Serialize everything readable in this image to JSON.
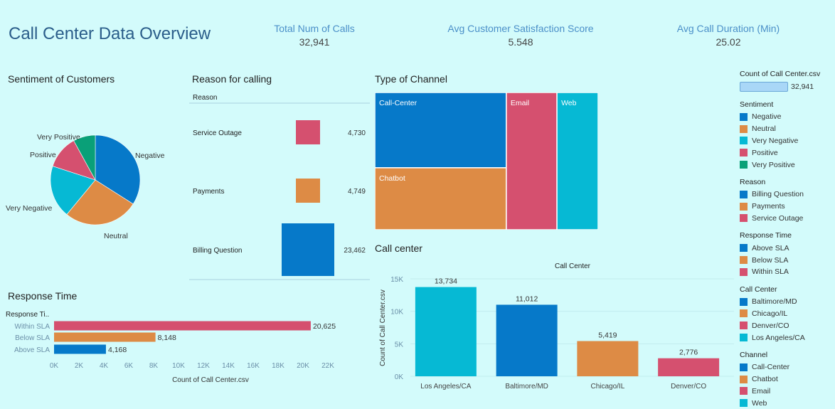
{
  "header": {
    "title": "Call Center Data Overview",
    "kpis": [
      {
        "label": "Total Num of Calls",
        "value": "32,941"
      },
      {
        "label": "Avg Customer Satisfaction Score",
        "value": "5.548"
      },
      {
        "label": "Avg Call Duration (Min)",
        "value": "25.02"
      }
    ]
  },
  "colors": {
    "blue": "#0679c9",
    "orange": "#dd8b45",
    "teal": "#06b9d4",
    "pink": "#d5506f",
    "green": "#0aa078"
  },
  "chart_data": [
    {
      "id": "sentiment",
      "type": "pie",
      "title": "Sentiment of Customers",
      "slices": [
        {
          "label": "Negative",
          "value": 34,
          "color": "#0679c9"
        },
        {
          "label": "Neutral",
          "value": 27,
          "color": "#dd8b45"
        },
        {
          "label": "Very Negative",
          "value": 19,
          "color": "#06b9d4"
        },
        {
          "label": "Positive",
          "value": 12,
          "color": "#d5506f"
        },
        {
          "label": "Very Positive",
          "value": 8,
          "color": "#0aa078"
        }
      ]
    },
    {
      "id": "reason",
      "type": "bar",
      "title": "Reason for calling",
      "column_header": "Reason",
      "categories": [
        "Service Outage",
        "Payments",
        "Billing Question"
      ],
      "values": [
        4730,
        4749,
        23462
      ],
      "labels": [
        "4,730",
        "4,749",
        "23,462"
      ],
      "colors": [
        "#d5506f",
        "#dd8b45",
        "#0679c9"
      ]
    },
    {
      "id": "channel",
      "type": "treemap",
      "title": "Type of Channel",
      "items": [
        {
          "label": "Call-Center",
          "value": 10639,
          "color": "#0679c9"
        },
        {
          "label": "Chatbot",
          "value": 8756,
          "color": "#dd8b45"
        },
        {
          "label": "Email",
          "value": 7470,
          "color": "#d5506f"
        },
        {
          "label": "Web",
          "value": 6076,
          "color": "#06b9d4"
        }
      ]
    },
    {
      "id": "callcenter",
      "type": "bar",
      "title": "Call center",
      "column_header": "Call Center",
      "ylabel": "Count of Call Center.csv",
      "categories": [
        "Los Angeles/CA",
        "Baltimore/MD",
        "Chicago/IL",
        "Denver/CO"
      ],
      "values": [
        13734,
        11012,
        5419,
        2776
      ],
      "labels": [
        "13,734",
        "11,012",
        "5,419",
        "2,776"
      ],
      "colors": [
        "#06b9d4",
        "#0679c9",
        "#dd8b45",
        "#d5506f"
      ],
      "ylim": [
        0,
        15000
      ],
      "yticks": [
        0,
        5000,
        10000,
        15000
      ],
      "ytick_labels": [
        "0K",
        "5K",
        "10K",
        "15K"
      ]
    },
    {
      "id": "response",
      "type": "bar",
      "orientation": "horizontal",
      "title": "Response Time",
      "column_header": "Response Ti..",
      "categories": [
        "Within SLA",
        "Below SLA",
        "Above SLA"
      ],
      "values": [
        20625,
        8148,
        4168
      ],
      "labels": [
        "20,625",
        "8,148",
        "4,168"
      ],
      "colors": [
        "#d5506f",
        "#dd8b45",
        "#0679c9"
      ],
      "xlabel": "Count of Call Center.csv",
      "xlim": [
        0,
        24000
      ],
      "xticks": [
        0,
        2000,
        4000,
        6000,
        8000,
        10000,
        12000,
        14000,
        16000,
        18000,
        20000,
        22000
      ],
      "xtick_labels": [
        "0K",
        "2K",
        "4K",
        "6K",
        "8K",
        "10K",
        "12K",
        "14K",
        "16K",
        "18K",
        "20K",
        "22K"
      ]
    }
  ],
  "legend": {
    "count_title": "Count of Call Center.csv",
    "count_value": "32,941",
    "groups": [
      {
        "title": "Sentiment",
        "items": [
          {
            "label": "Negative",
            "color": "#0679c9"
          },
          {
            "label": "Neutral",
            "color": "#dd8b45"
          },
          {
            "label": "Very Negative",
            "color": "#06b9d4"
          },
          {
            "label": "Positive",
            "color": "#d5506f"
          },
          {
            "label": "Very Positive",
            "color": "#0aa078"
          }
        ]
      },
      {
        "title": "Reason",
        "items": [
          {
            "label": "Billing Question",
            "color": "#0679c9"
          },
          {
            "label": "Payments",
            "color": "#dd8b45"
          },
          {
            "label": "Service Outage",
            "color": "#d5506f"
          }
        ]
      },
      {
        "title": "Response Time",
        "items": [
          {
            "label": "Above SLA",
            "color": "#0679c9"
          },
          {
            "label": "Below SLA",
            "color": "#dd8b45"
          },
          {
            "label": "Within SLA",
            "color": "#d5506f"
          }
        ]
      },
      {
        "title": "Call Center",
        "items": [
          {
            "label": "Baltimore/MD",
            "color": "#0679c9"
          },
          {
            "label": "Chicago/IL",
            "color": "#dd8b45"
          },
          {
            "label": "Denver/CO",
            "color": "#d5506f"
          },
          {
            "label": "Los Angeles/CA",
            "color": "#06b9d4"
          }
        ]
      },
      {
        "title": "Channel",
        "items": [
          {
            "label": "Call-Center",
            "color": "#0679c9"
          },
          {
            "label": "Chatbot",
            "color": "#dd8b45"
          },
          {
            "label": "Email",
            "color": "#d5506f"
          },
          {
            "label": "Web",
            "color": "#06b9d4"
          }
        ]
      }
    ]
  }
}
